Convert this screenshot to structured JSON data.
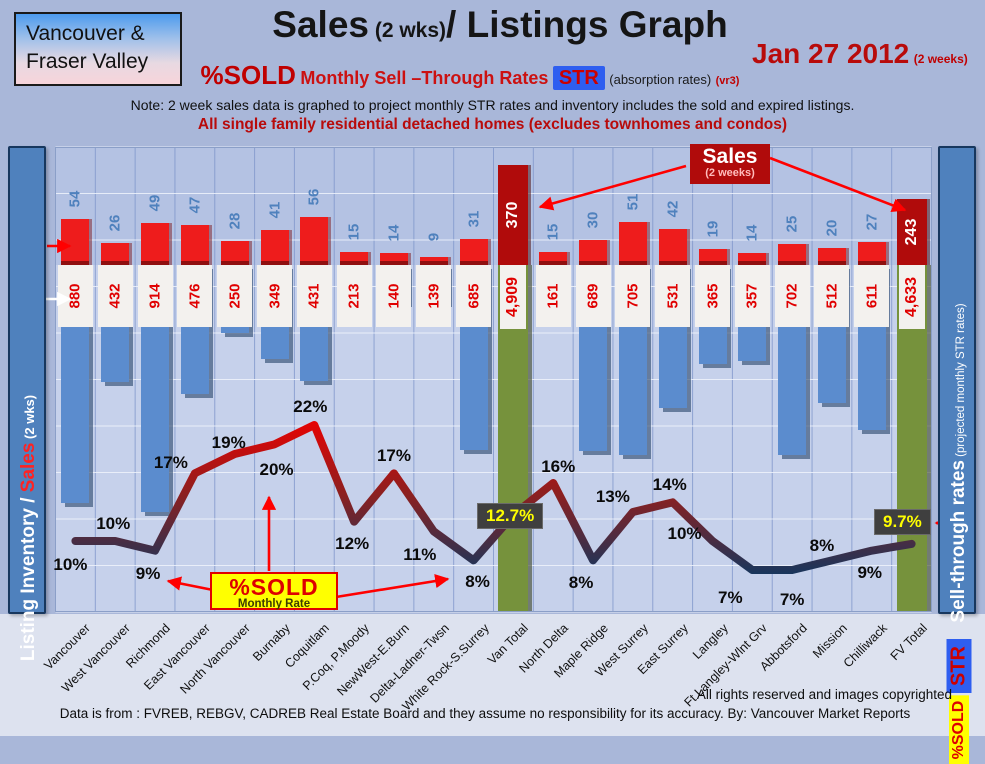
{
  "header": {
    "region_box": {
      "line1": "Vancouver &",
      "line2": "Fraser Valley"
    },
    "title": {
      "part1": "Sales",
      "small": "(2 wks)",
      "part2": "/ Listings Graph"
    },
    "date": {
      "main": "Jan 27 2012",
      "suffix": "(2 weeks)"
    },
    "subtitle": {
      "pct_sold": "%SOLD",
      "rates_text": "Monthly Sell –Through Rates",
      "str_badge": "STR",
      "absorption": "(absorption rates)",
      "version": "(vr3)"
    },
    "note": "Note: 2 week sales data is graphed to project monthly STR rates and inventory includes the sold and expired listings.",
    "scope_line": "All single family residential detached homes (excludes townhomes and condos)"
  },
  "axes": {
    "left_label": {
      "part1": "Listing Inventory / ",
      "part2": "Sales",
      "part3": " (2  wks)"
    },
    "right_label": {
      "part1": "Sell-through rates",
      "part2": " (projected monthly STR rates)",
      "str_badge": "STR",
      "pct_sold_badge": "%SOLD"
    }
  },
  "annotations": {
    "sales_badge": {
      "line1": "Sales",
      "line2": "(2 weeks)"
    },
    "pct_sold_badge": {
      "line1": "%SOLD",
      "line2": "Monthly Rate"
    },
    "van_total_rate": "12.7%",
    "fv_total_rate": "9.7%"
  },
  "footer": {
    "rights": "All rights reserved and  images copyrighted",
    "source": "Data is from : FVREB, REBGV, CADREB Real Estate Board and they assume no responsibility for its accuracy. By: Vancouver Market Reports"
  },
  "chart_data": {
    "type": "combo bar + line",
    "title": "Sales (2 wks)/ Listings Graph — Jan 27 2012",
    "categories": [
      "Vancouver",
      "West Vancouver",
      "Richmond",
      "East Vancouver",
      "North Vancouver",
      "Burnaby",
      "Coquitlam",
      "P.Coq, P.Moody",
      "NewWest-E.Burn",
      "Delta-Ladner-Twsn",
      "White Rock-S.Surrey",
      "Van Total",
      "North Delta",
      "Maple Ridge",
      "West Surrey",
      "East Surrey",
      "Langley",
      "Ft Langley-Wlnt Grv",
      "Abbotsford",
      "Mission",
      "Chilliwack",
      "FV Total"
    ],
    "series": [
      {
        "name": "Sales (2 weeks)",
        "type": "bar",
        "values": [
          54,
          26,
          49,
          47,
          28,
          41,
          56,
          15,
          14,
          9,
          31,
          370,
          15,
          30,
          51,
          42,
          19,
          14,
          25,
          20,
          27,
          243
        ]
      },
      {
        "name": "Listing Inventory",
        "type": "bar",
        "values": [
          880,
          432,
          914,
          476,
          250,
          349,
          431,
          213,
          140,
          139,
          685,
          4909,
          161,
          689,
          705,
          531,
          365,
          357,
          702,
          512,
          611,
          4633
        ]
      },
      {
        "name": "%SOLD monthly sell-through rate",
        "type": "line",
        "values": [
          10,
          10,
          9,
          17,
          19,
          20,
          22,
          12,
          17,
          11,
          8,
          12.7,
          16,
          8,
          13,
          14,
          10,
          7,
          7,
          8,
          9,
          9.7
        ]
      }
    ],
    "inventory_display": [
      "880",
      "432",
      "914",
      "476",
      "250",
      "349",
      "431",
      "213",
      "140",
      "139",
      "685",
      "4,909",
      "161",
      "689",
      "705",
      "531",
      "365",
      "357",
      "702",
      "512",
      "611",
      "4,633"
    ],
    "rate_labels": [
      "10%",
      "10%",
      "9%",
      "17%",
      "19%",
      "20%",
      "22%",
      "12%",
      "17%",
      "11%",
      "8%",
      "12.7%",
      "16%",
      "8%",
      "13%",
      "14%",
      "10%",
      "7%",
      "7%",
      "8%",
      "9%",
      "9.7%"
    ],
    "totals_indices": [
      11,
      21
    ],
    "legend_position": "sidebars",
    "grid": true
  },
  "colors": {
    "accent_red": "#c00000",
    "bar_sales": "#ee1c1c",
    "bar_sales_total": "#b00b0b",
    "bar_inventory": "#5b8cce",
    "bar_total_column": "#76923c",
    "line_high": "#ee0000",
    "line_low": "#17365d",
    "sidebar_blue": "#4f81bd",
    "highlight_yellow": "#ffff00",
    "rate_box_bg": "#3f3f3f",
    "str_badge_bg": "#2e5ef0",
    "band_white": "#f3f1ee"
  }
}
